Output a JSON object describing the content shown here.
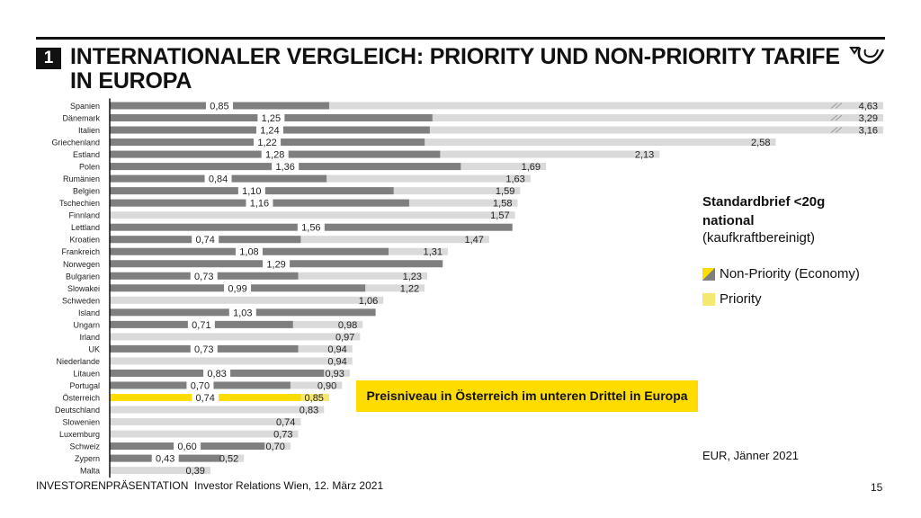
{
  "header": {
    "section_number": "1",
    "title": "INTERNATIONALER VERGLEICH: PRIORITY UND NON-PRIORITY TARIFE IN EUROPA",
    "logo_icon": "posthorn-logo-icon"
  },
  "legend": {
    "title": "Standardbrief <20g national",
    "subtitle": "(kaufkraftbereinigt)",
    "items": [
      {
        "label": "Non-Priority (Economy)",
        "icon": "split-swatch-icon"
      },
      {
        "label": "Priority",
        "icon": "yellow-swatch-icon"
      }
    ]
  },
  "callout": {
    "text": "Preisniveau in Österreich im unteren Drittel in Europa"
  },
  "source_note": "EUR, Jänner 2021",
  "footer": {
    "text": "INVESTORENPRÄSENTATION  Investor Relations Wien, 12. März 2021",
    "page_number": "15"
  },
  "colors": {
    "non_priority": "#7f7f7f",
    "priority": "#dadada",
    "highlight": "#ffdc00",
    "highlight_light": "#f5e870"
  },
  "chart_data": {
    "type": "bar",
    "orientation": "horizontal",
    "title": "Standardbrief <20g national (kaufkraftbereinigt)",
    "unit": "EUR",
    "xlim": [
      0,
      3.0
    ],
    "axis_break_values": [
      4.63,
      3.29,
      3.16
    ],
    "highlight_category": "Österreich",
    "categories": [
      "Spanien",
      "Dänemark",
      "Italien",
      "Griechenland",
      "Estland",
      "Polen",
      "Rumänien",
      "Belgien",
      "Tschechien",
      "Finnland",
      "Lettland",
      "Kroatien",
      "Frankreich",
      "Norwegen",
      "Bulgarien",
      "Slowakei",
      "Schweden",
      "Island",
      "Ungarn",
      "Irland",
      "UK",
      "Niederlande",
      "Litauen",
      "Portugal",
      "Österreich",
      "Deutschland",
      "Slowenien",
      "Luxemburg",
      "Schweiz",
      "Zypern",
      "Malta"
    ],
    "series": [
      {
        "name": "Non-Priority (Economy)",
        "values": [
          0.85,
          1.25,
          1.24,
          1.22,
          1.28,
          1.36,
          0.84,
          1.1,
          1.16,
          null,
          1.56,
          0.74,
          1.08,
          1.29,
          0.73,
          0.99,
          null,
          1.03,
          0.71,
          null,
          0.73,
          null,
          0.83,
          0.7,
          0.74,
          null,
          null,
          null,
          0.6,
          0.43,
          null
        ],
        "labels": [
          "0,85",
          "1,25",
          "1,24",
          "1,22",
          "1,28",
          "1,36",
          "0,84",
          "1,10",
          "1,16",
          null,
          "1,56",
          "0,74",
          "1,08",
          "1,29",
          "0,73",
          "0,99",
          null,
          "1,03",
          "0,71",
          null,
          "0,73",
          null,
          "0,83",
          "0,70",
          "0,74",
          null,
          null,
          null,
          "0,60",
          "0,43",
          null
        ]
      },
      {
        "name": "Priority",
        "values": [
          4.63,
          3.29,
          3.16,
          2.58,
          2.13,
          1.69,
          1.63,
          1.59,
          1.58,
          1.57,
          null,
          1.47,
          1.31,
          null,
          1.23,
          1.22,
          1.06,
          null,
          0.98,
          0.97,
          0.94,
          0.94,
          0.93,
          0.9,
          0.85,
          0.83,
          0.74,
          0.73,
          0.7,
          0.52,
          0.39
        ],
        "labels": [
          "4,63",
          "3,29",
          "3,16",
          "2,58",
          "2,13",
          "1,69",
          "1,63",
          "1,59",
          "1,58",
          "1,57",
          null,
          "1,47",
          "1,31",
          null,
          "1,23",
          "1,22",
          "1,06",
          null,
          "0,98",
          "0,97",
          "0,94",
          "0,94",
          "0,93",
          "0,90",
          "0,85",
          "0,83",
          "0,74",
          "0,73",
          "0,70",
          "0,52",
          "0,39"
        ]
      }
    ]
  }
}
